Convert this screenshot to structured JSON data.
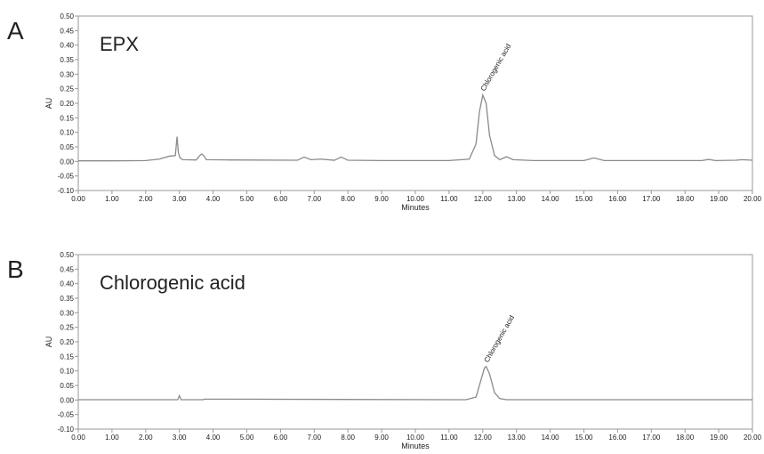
{
  "chart_data": [
    {
      "type": "line",
      "panel_label": "A",
      "title": "EPX",
      "xlabel": "Minutes",
      "ylabel": "AU",
      "annotation": "Chlorogenic acid",
      "color": "#8a8a8a",
      "x": [
        0,
        1,
        2,
        2.4,
        2.7,
        2.88,
        2.93,
        2.97,
        3.02,
        3.1,
        3.5,
        3.62,
        3.67,
        3.72,
        3.8,
        4.5,
        6.5,
        6.7,
        6.9,
        7.2,
        7.6,
        7.8,
        8.0,
        9,
        11.0,
        11.6,
        11.8,
        11.9,
        12.0,
        12.1,
        12.2,
        12.35,
        12.5,
        12.7,
        12.9,
        13.5,
        15.0,
        15.3,
        15.6,
        17,
        18.5,
        18.7,
        18.9,
        19.5,
        19.7,
        20
      ],
      "values": [
        0.002,
        0.002,
        0.003,
        0.008,
        0.018,
        0.02,
        0.085,
        0.03,
        0.012,
        0.006,
        0.005,
        0.022,
        0.025,
        0.02,
        0.006,
        0.005,
        0.004,
        0.015,
        0.006,
        0.008,
        0.004,
        0.015,
        0.004,
        0.003,
        0.003,
        0.008,
        0.06,
        0.17,
        0.228,
        0.2,
        0.09,
        0.02,
        0.006,
        0.016,
        0.006,
        0.003,
        0.003,
        0.012,
        0.003,
        0.003,
        0.003,
        0.007,
        0.003,
        0.004,
        0.006,
        0.004
      ],
      "xlim": [
        0,
        20
      ],
      "ylim": [
        -0.1,
        0.5
      ],
      "xticks": [
        {
          "value": 0,
          "label": "0.00"
        },
        {
          "value": 1,
          "label": "1.00"
        },
        {
          "value": 2,
          "label": "2.00"
        },
        {
          "value": 3,
          "label": "3.00"
        },
        {
          "value": 4,
          "label": "4.00"
        },
        {
          "value": 5,
          "label": "5.00"
        },
        {
          "value": 6,
          "label": "6.00"
        },
        {
          "value": 7,
          "label": "7.00"
        },
        {
          "value": 8,
          "label": "8.00"
        },
        {
          "value": 9,
          "label": "9.00"
        },
        {
          "value": 10,
          "label": "10.00"
        },
        {
          "value": 11,
          "label": "11.00"
        },
        {
          "value": 12,
          "label": "12.00"
        },
        {
          "value": 13,
          "label": "13.00"
        },
        {
          "value": 14,
          "label": "14.00"
        },
        {
          "value": 15,
          "label": "15.00"
        },
        {
          "value": 16,
          "label": "16.00"
        },
        {
          "value": 17,
          "label": "17.00"
        },
        {
          "value": 18,
          "label": "18.00"
        },
        {
          "value": 19,
          "label": "19.00"
        },
        {
          "value": 20,
          "label": "20.00"
        }
      ],
      "yticks": [
        {
          "value": -0.1,
          "label": "-0.10"
        },
        {
          "value": -0.05,
          "label": "-0.05"
        },
        {
          "value": 0,
          "label": "0.00"
        },
        {
          "value": 0.05,
          "label": "0.05"
        },
        {
          "value": 0.1,
          "label": "0.10"
        },
        {
          "value": 0.15,
          "label": "0.15"
        },
        {
          "value": 0.2,
          "label": "0.20"
        },
        {
          "value": 0.25,
          "label": "0.25"
        },
        {
          "value": 0.3,
          "label": "0.30"
        },
        {
          "value": 0.35,
          "label": "0.35"
        },
        {
          "value": 0.4,
          "label": "0.40"
        },
        {
          "value": 0.45,
          "label": "0.45"
        },
        {
          "value": 0.5,
          "label": "0.50"
        }
      ]
    },
    {
      "type": "line",
      "panel_label": "B",
      "title": "Chlorogenic acid",
      "xlabel": "Minutes",
      "ylabel": "AU",
      "annotation": "Chlorogenic acid",
      "color": "#8a8a8a",
      "x": [
        0,
        2.95,
        3.0,
        3.05,
        3.7,
        3.75,
        11.5,
        11.8,
        11.95,
        12.05,
        12.1,
        12.2,
        12.35,
        12.5,
        12.7,
        20
      ],
      "values": [
        0.001,
        0.001,
        0.015,
        0.001,
        0.001,
        0.003,
        0.001,
        0.01,
        0.07,
        0.11,
        0.115,
        0.09,
        0.025,
        0.005,
        0.001,
        0.001
      ],
      "xlim": [
        0,
        20
      ],
      "ylim": [
        -0.1,
        0.5
      ],
      "xticks": [
        {
          "value": 0,
          "label": "0.00"
        },
        {
          "value": 1,
          "label": "1.00"
        },
        {
          "value": 2,
          "label": "2.00"
        },
        {
          "value": 3,
          "label": "3.00"
        },
        {
          "value": 4,
          "label": "4.00"
        },
        {
          "value": 5,
          "label": "5.00"
        },
        {
          "value": 6,
          "label": "6.00"
        },
        {
          "value": 7,
          "label": "7.00"
        },
        {
          "value": 8,
          "label": "8.00"
        },
        {
          "value": 9,
          "label": "9.00"
        },
        {
          "value": 10,
          "label": "10.00"
        },
        {
          "value": 11,
          "label": "11.00"
        },
        {
          "value": 12,
          "label": "12.00"
        },
        {
          "value": 13,
          "label": "13.00"
        },
        {
          "value": 14,
          "label": "14.00"
        },
        {
          "value": 15,
          "label": "15.00"
        },
        {
          "value": 16,
          "label": "16.00"
        },
        {
          "value": 17,
          "label": "17.00"
        },
        {
          "value": 18,
          "label": "18.00"
        },
        {
          "value": 19,
          "label": "19.00"
        },
        {
          "value": 20,
          "label": "20.00"
        }
      ],
      "yticks": [
        {
          "value": -0.1,
          "label": "-0.10"
        },
        {
          "value": -0.05,
          "label": "-0.05"
        },
        {
          "value": 0,
          "label": "0.00"
        },
        {
          "value": 0.05,
          "label": "0.05"
        },
        {
          "value": 0.1,
          "label": "0.10"
        },
        {
          "value": 0.15,
          "label": "0.15"
        },
        {
          "value": 0.2,
          "label": "0.20"
        },
        {
          "value": 0.25,
          "label": "0.25"
        },
        {
          "value": 0.3,
          "label": "0.30"
        },
        {
          "value": 0.35,
          "label": "0.35"
        },
        {
          "value": 0.4,
          "label": "0.40"
        },
        {
          "value": 0.45,
          "label": "0.45"
        },
        {
          "value": 0.5,
          "label": "0.50"
        }
      ]
    }
  ]
}
